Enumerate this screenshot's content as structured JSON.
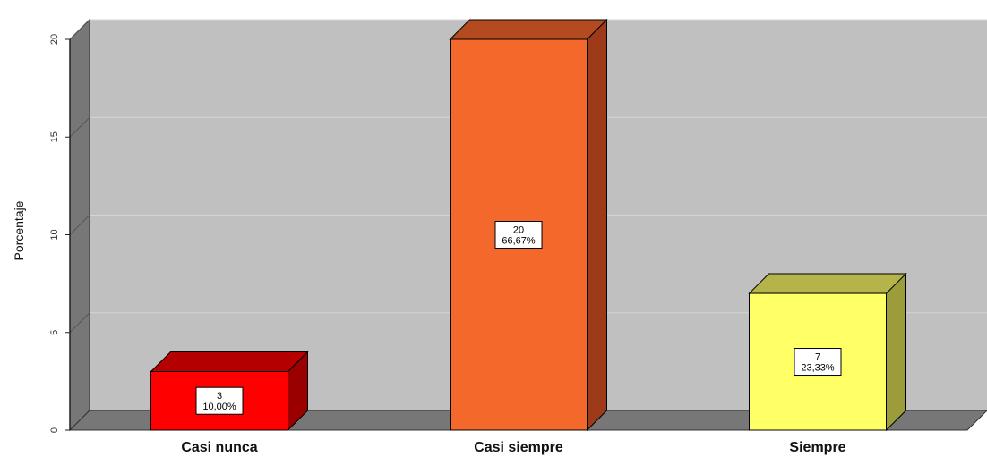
{
  "chart_data": {
    "type": "bar",
    "title": "",
    "xlabel": "",
    "ylabel": "Porcentaje",
    "ylim": [
      0,
      20
    ],
    "yticks": [
      0,
      5,
      10,
      15,
      20
    ],
    "grid": true,
    "style": "3d",
    "categories": [
      "Casi nunca",
      "Casi siempre",
      "Siempre"
    ],
    "values": [
      3,
      20,
      7
    ],
    "percent_labels": [
      "10,00%",
      "66,67%",
      "23,33%"
    ],
    "colors": {
      "face": [
        "#ff0000",
        "#f4682b",
        "#ffff66"
      ],
      "side": [
        "#9a0000",
        "#9c3a19",
        "#9c9c3a"
      ],
      "top": [
        "#b40000",
        "#b44a1f",
        "#b4b44a"
      ],
      "plot_back": "#c0c0c0",
      "wall": "#777777",
      "floor": "#777777",
      "grid": "#d4d4d4"
    }
  }
}
